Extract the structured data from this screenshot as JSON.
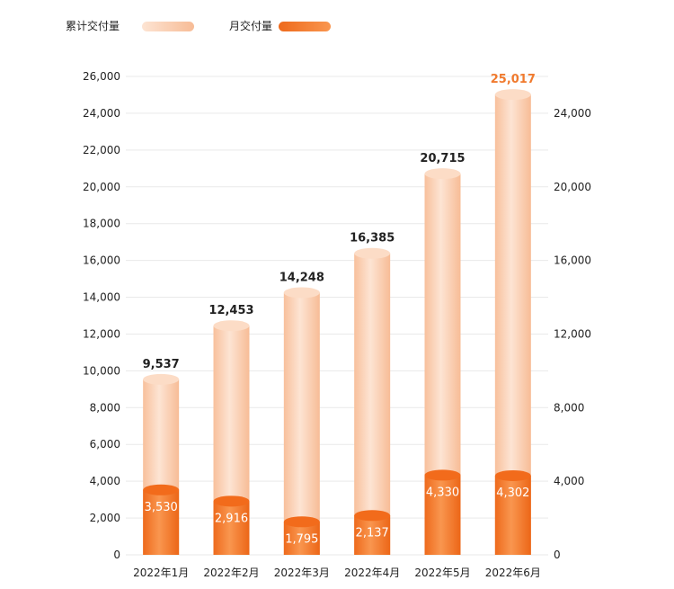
{
  "chart_data": {
    "type": "bar",
    "categories": [
      "2022年1月",
      "2022年2月",
      "2022年3月",
      "2022年4月",
      "2022年5月",
      "2022年6月"
    ],
    "series": [
      {
        "name": "累计交付量",
        "values": [
          9537,
          12453,
          14248,
          16385,
          20715,
          25017
        ]
      },
      {
        "name": "月交付量",
        "values": [
          3530,
          2916,
          1795,
          2137,
          4330,
          4302
        ]
      }
    ],
    "value_labels": {
      "total": [
        "9,537",
        "12,453",
        "14,248",
        "16,385",
        "20,715",
        "25,017"
      ],
      "monthly": [
        "3,530",
        "2,916",
        "1,795",
        "2,137",
        "4,330",
        "4,302"
      ]
    },
    "left_axis": {
      "ylim": [
        0,
        26000
      ],
      "ticks": [
        0,
        2000,
        4000,
        6000,
        8000,
        10000,
        12000,
        14000,
        16000,
        18000,
        20000,
        22000,
        24000,
        26000
      ],
      "tick_labels": [
        "0",
        "2,000",
        "4,000",
        "6,000",
        "8,000",
        "10,000",
        "12,000",
        "14,000",
        "16,000",
        "18,000",
        "20,000",
        "22,000",
        "24,000",
        "26,000"
      ]
    },
    "right_axis": {
      "ylim": [
        0,
        26000
      ],
      "ticks": [
        0,
        4000,
        8000,
        12000,
        16000,
        20000,
        24000
      ],
      "tick_labels": [
        "0",
        "4,000",
        "8,000",
        "12,000",
        "16,000",
        "20,000",
        "24,000"
      ]
    },
    "grid": true,
    "legend_position": "top-left",
    "highlight_last_total": true,
    "colors": {
      "total_bar": "#fbd2b5",
      "monthly_bar": "#f47e33",
      "highlight_label": "#f07a2e",
      "grid": "#e9e9e9"
    }
  }
}
